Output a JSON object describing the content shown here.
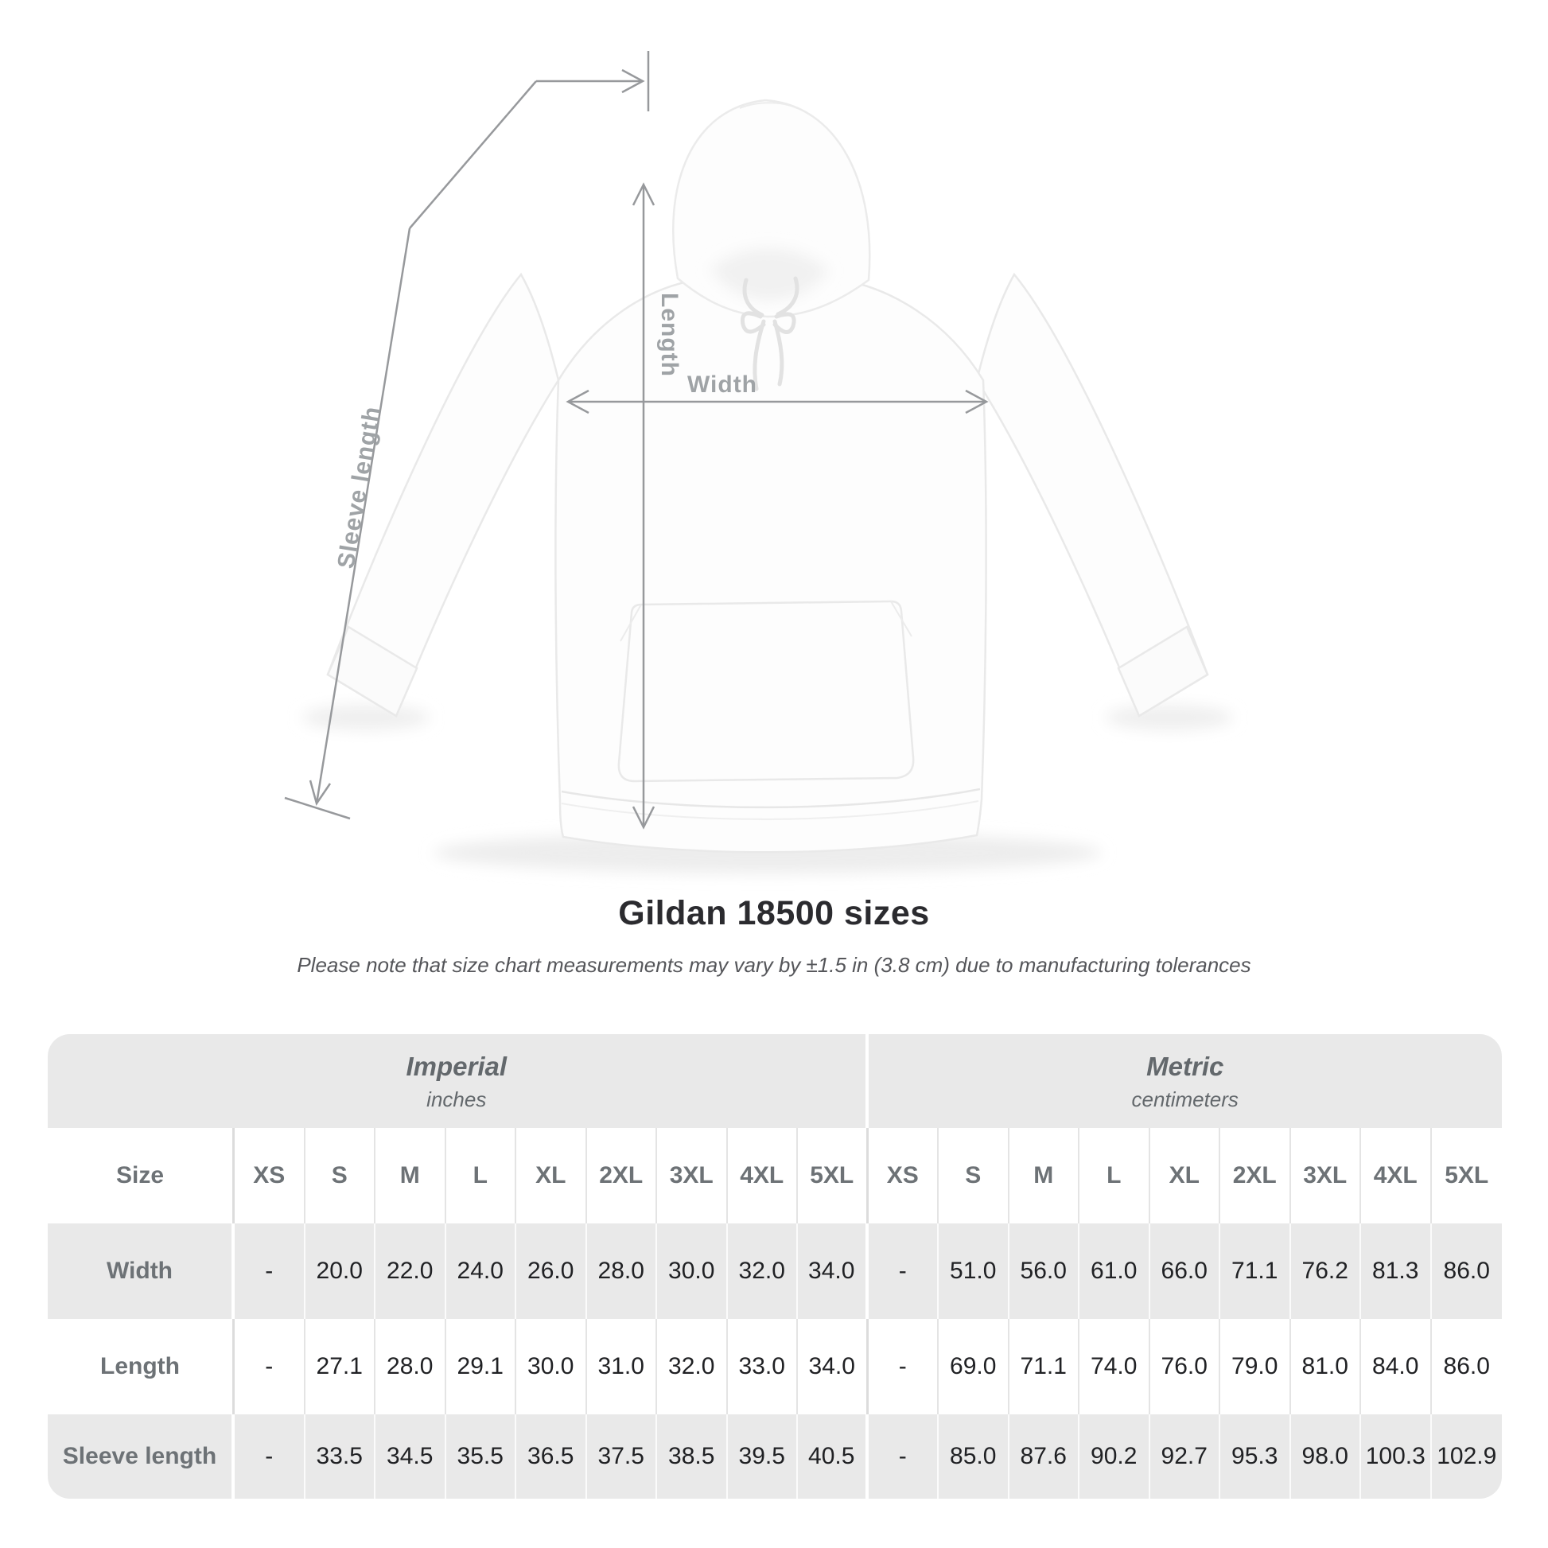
{
  "colors": {
    "table_band_gray": "#e9e9e9",
    "header_text_gray": "#6d7276",
    "value_text": "#202124",
    "figure_label_gray": "#9fa3a6",
    "arrow_gray": "#97999c"
  },
  "figure": {
    "labels": {
      "length": "Length",
      "width": "Width",
      "sleeve": "Sleeve length"
    }
  },
  "title": "Gildan 18500 sizes",
  "subtitle": "Please note that size chart measurements may vary by ±1.5 in (3.8 cm) due to manufacturing tolerances",
  "table": {
    "groups": [
      {
        "label": "Imperial",
        "sublabel": "inches"
      },
      {
        "label": "Metric",
        "sublabel": "centimeters"
      }
    ],
    "size_header": "Size",
    "sizes": [
      "XS",
      "S",
      "M",
      "L",
      "XL",
      "2XL",
      "3XL",
      "4XL",
      "5XL"
    ],
    "rows": [
      {
        "label": "Width",
        "imperial": [
          "-",
          "20.0",
          "22.0",
          "24.0",
          "26.0",
          "28.0",
          "30.0",
          "32.0",
          "34.0"
        ],
        "metric": [
          "-",
          "51.0",
          "56.0",
          "61.0",
          "66.0",
          "71.1",
          "76.2",
          "81.3",
          "86.0"
        ]
      },
      {
        "label": "Length",
        "imperial": [
          "-",
          "27.1",
          "28.0",
          "29.1",
          "30.0",
          "31.0",
          "32.0",
          "33.0",
          "34.0"
        ],
        "metric": [
          "-",
          "69.0",
          "71.1",
          "74.0",
          "76.0",
          "79.0",
          "81.0",
          "84.0",
          "86.0"
        ]
      },
      {
        "label": "Sleeve length",
        "imperial": [
          "-",
          "33.5",
          "34.5",
          "35.5",
          "36.5",
          "37.5",
          "38.5",
          "39.5",
          "40.5"
        ],
        "metric": [
          "-",
          "85.0",
          "87.6",
          "90.2",
          "92.7",
          "95.3",
          "98.0",
          "100.3",
          "102.9"
        ]
      }
    ]
  },
  "chart_data": {
    "type": "table",
    "title": "Gildan 18500 sizes",
    "note": "Size chart measurements may vary by ±1.5 in (3.8 cm) due to manufacturing tolerances",
    "unit_groups": [
      {
        "name": "Imperial",
        "unit": "inches"
      },
      {
        "name": "Metric",
        "unit": "centimeters"
      }
    ],
    "sizes": [
      "XS",
      "S",
      "M",
      "L",
      "XL",
      "2XL",
      "3XL",
      "4XL",
      "5XL"
    ],
    "measurements": [
      {
        "name": "Width",
        "imperial_in": [
          null,
          20.0,
          22.0,
          24.0,
          26.0,
          28.0,
          30.0,
          32.0,
          34.0
        ],
        "metric_cm": [
          null,
          51.0,
          56.0,
          61.0,
          66.0,
          71.1,
          76.2,
          81.3,
          86.0
        ]
      },
      {
        "name": "Length",
        "imperial_in": [
          null,
          27.1,
          28.0,
          29.1,
          30.0,
          31.0,
          32.0,
          33.0,
          34.0
        ],
        "metric_cm": [
          null,
          69.0,
          71.1,
          74.0,
          76.0,
          79.0,
          81.0,
          84.0,
          86.0
        ]
      },
      {
        "name": "Sleeve length",
        "imperial_in": [
          null,
          33.5,
          34.5,
          35.5,
          36.5,
          37.5,
          38.5,
          39.5,
          40.5
        ],
        "metric_cm": [
          null,
          85.0,
          87.6,
          90.2,
          92.7,
          95.3,
          98.0,
          100.3,
          102.9
        ]
      }
    ]
  }
}
